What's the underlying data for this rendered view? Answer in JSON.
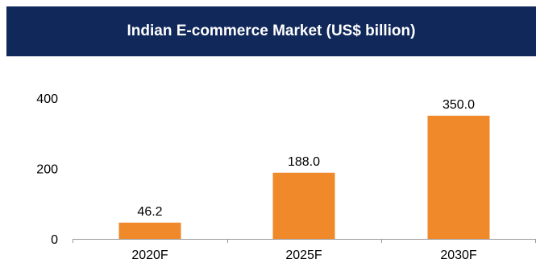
{
  "chart_data": {
    "type": "bar",
    "title": "Indian E-commerce Market (US$ billion)",
    "categories": [
      "2020F",
      "2025F",
      "2030F"
    ],
    "values": [
      46.2,
      188.0,
      350.0
    ],
    "value_labels": [
      "46.2",
      "188.0",
      "350.0"
    ],
    "yticks": [
      0,
      200,
      400
    ],
    "ylim": [
      0,
      400
    ],
    "xlabel": "",
    "ylabel": "",
    "grid": false,
    "legend": "none",
    "bar_color": "#f0892a",
    "axis_color": "#999999"
  },
  "colors": {
    "title_background": "#10285a",
    "title_text": "#ffffff"
  }
}
